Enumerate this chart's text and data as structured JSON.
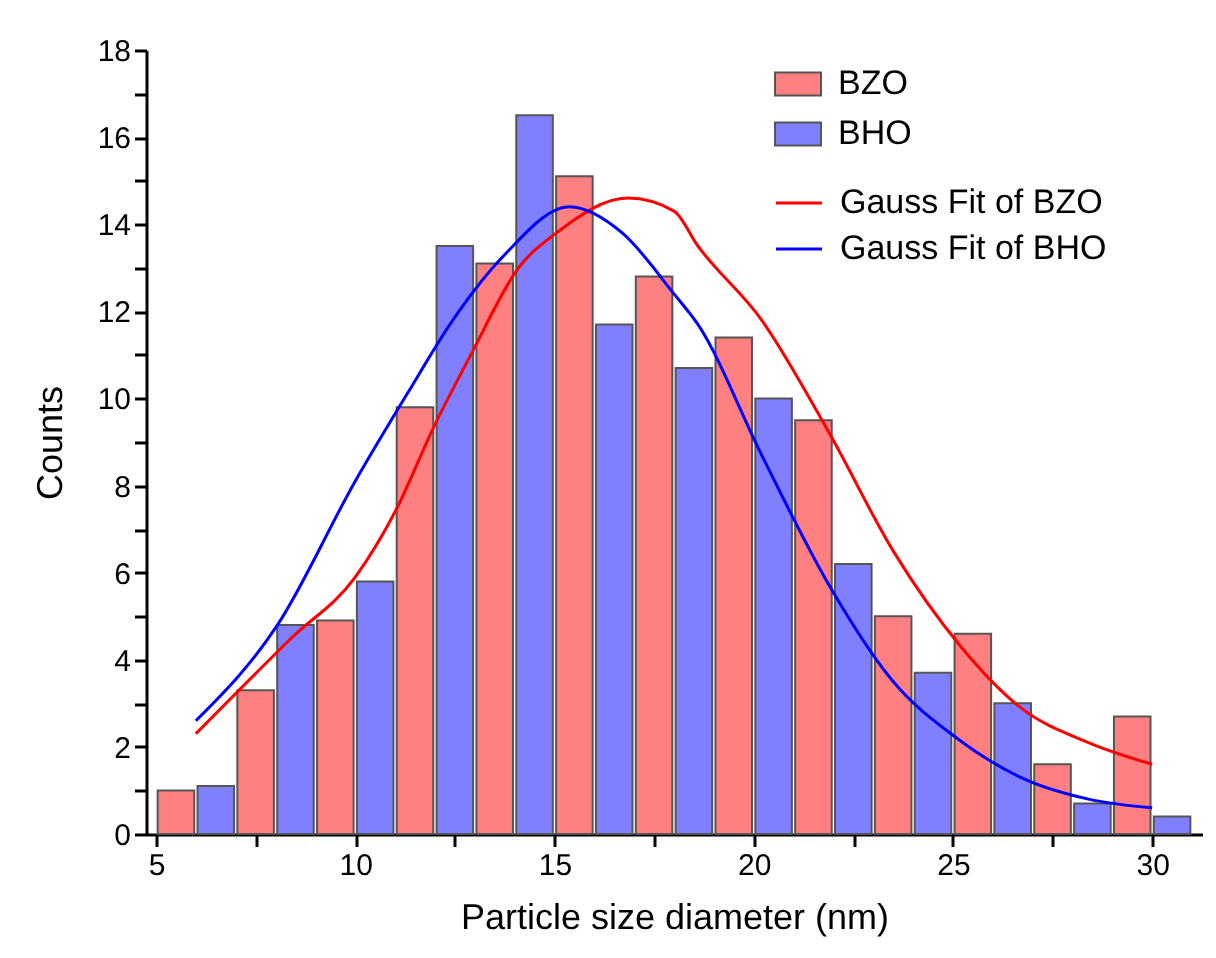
{
  "chart_data": {
    "type": "bar",
    "xlabel": "Particle size diameter (nm)",
    "ylabel": "Counts",
    "xlim": [
      5,
      31
    ],
    "ylim": [
      0,
      18
    ],
    "xticks": [
      5,
      {
        "value": 7.5,
        "label": null
      },
      10,
      {
        "value": 12.5,
        "label": null
      },
      15,
      {
        "value": 17.5,
        "label": null
      },
      20,
      {
        "value": 22.5,
        "label": null
      },
      25,
      {
        "value": 27.5,
        "label": null
      },
      30
    ],
    "yticks": [
      0,
      {
        "value": 1,
        "label": null
      },
      2,
      {
        "value": 3,
        "label": null
      },
      4,
      {
        "value": 5,
        "label": null
      },
      6,
      {
        "value": 7,
        "label": null
      },
      8,
      {
        "value": 9,
        "label": null
      },
      10,
      {
        "value": 11,
        "label": null
      },
      12,
      {
        "value": 13,
        "label": null
      },
      14,
      {
        "value": 15,
        "label": null
      },
      16,
      {
        "value": 17,
        "label": null
      },
      18
    ],
    "legend": "top right",
    "series": [
      {
        "name": "BZO",
        "color": "#ff8080",
        "x": [
          5.5,
          7.5,
          9.5,
          11.5,
          13.5,
          15.5,
          17.5,
          19.5,
          21.5,
          23.5,
          25.5,
          27.5,
          29.5
        ],
        "values": [
          1.0,
          3.3,
          4.9,
          9.8,
          13.1,
          15.1,
          12.8,
          11.4,
          9.5,
          5.0,
          4.6,
          1.6,
          2.7
        ]
      },
      {
        "name": "BHO",
        "color": "#8080ff",
        "x": [
          6.5,
          8.5,
          10.5,
          12.5,
          14.5,
          16.5,
          18.5,
          20.5,
          22.5,
          24.5,
          26.5,
          28.5,
          30.5
        ],
        "values": [
          1.1,
          4.8,
          5.8,
          13.5,
          16.5,
          11.7,
          10.7,
          10.0,
          6.2,
          3.7,
          3.0,
          0.7,
          0.4
        ]
      },
      {
        "name": "Gauss Fit of BZO",
        "type": "line",
        "color": "#ff0000",
        "x": [
          6.0,
          8.4,
          10.0,
          11.0,
          12.0,
          12.9,
          14.1,
          15.05,
          16.85,
          18.0,
          18.6,
          20.2,
          21.9,
          23.5,
          25.2,
          26.7,
          28.4,
          30.0
        ],
        "values": [
          2.3,
          4.5,
          5.9,
          7.4,
          9.4,
          11.0,
          13.0,
          13.8,
          14.6,
          14.3,
          13.5,
          11.8,
          9.2,
          6.5,
          4.3,
          2.9,
          2.1,
          1.6
        ]
      },
      {
        "name": "Gauss Fit of BHO",
        "type": "line",
        "color": "#0000ff",
        "x": [
          6.0,
          8.05,
          10.0,
          11.3,
          12.45,
          13.75,
          15.37,
          16.7,
          18.0,
          18.6,
          20.2,
          21.9,
          23.5,
          25.1,
          26.7,
          28.4,
          30.0
        ],
        "values": [
          2.6,
          4.8,
          8.1,
          10.1,
          11.8,
          13.3,
          14.4,
          13.8,
          12.4,
          11.7,
          8.7,
          5.7,
          3.5,
          2.2,
          1.3,
          0.8,
          0.6
        ]
      }
    ]
  }
}
